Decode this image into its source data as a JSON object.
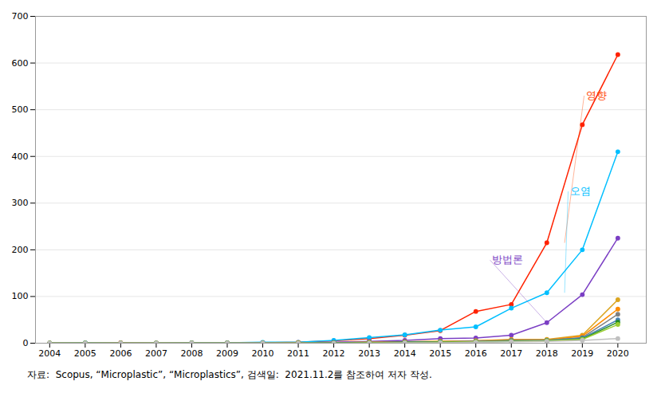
{
  "chart_data": {
    "type": "line",
    "x": [
      2004,
      2005,
      2006,
      2007,
      2008,
      2009,
      2010,
      2011,
      2012,
      2013,
      2014,
      2015,
      2016,
      2017,
      2018,
      2019,
      2020
    ],
    "series": [
      {
        "color": "#FF2200",
        "values": [
          0,
          0,
          1,
          0,
          1,
          1,
          1,
          2,
          5,
          10,
          17,
          27,
          68,
          83,
          215,
          468,
          618
        ]
      },
      {
        "color": "#00BFFF",
        "values": [
          0,
          1,
          0,
          0,
          1,
          1,
          2,
          2,
          6,
          12,
          18,
          28,
          35,
          75,
          108,
          200,
          410
        ]
      },
      {
        "color": "#7B3FC4",
        "values": [
          0,
          0,
          0,
          0,
          0,
          0,
          1,
          1,
          2,
          4,
          6,
          10,
          11,
          17,
          44,
          104,
          225
        ]
      },
      {
        "color": "#DAA520",
        "values": [
          0,
          0,
          0,
          0,
          0,
          0,
          0,
          1,
          1,
          2,
          3,
          4,
          5,
          8,
          8,
          17,
          93
        ]
      },
      {
        "color": "#FF8C00",
        "values": [
          0,
          0,
          0,
          0,
          0,
          0,
          0,
          1,
          1,
          2,
          3,
          4,
          5,
          7,
          7,
          15,
          73
        ]
      },
      {
        "color": "#808080",
        "values": [
          0,
          0,
          0,
          0,
          0,
          0,
          0,
          0,
          1,
          2,
          2,
          3,
          4,
          6,
          6,
          12,
          62
        ]
      },
      {
        "color": "#4682B4",
        "values": [
          0,
          0,
          0,
          0,
          0,
          0,
          0,
          0,
          1,
          1,
          2,
          3,
          4,
          5,
          6,
          11,
          50
        ]
      },
      {
        "color": "#228B22",
        "values": [
          0,
          0,
          0,
          0,
          0,
          0,
          0,
          0,
          1,
          1,
          2,
          2,
          3,
          4,
          5,
          9,
          45
        ]
      },
      {
        "color": "#9ACD32",
        "values": [
          0,
          0,
          0,
          0,
          0,
          0,
          0,
          0,
          0,
          1,
          1,
          2,
          3,
          4,
          5,
          8,
          40
        ]
      },
      {
        "color": "#C0C0C0",
        "values": [
          0,
          0,
          0,
          0,
          0,
          0,
          0,
          0,
          0,
          0,
          1,
          1,
          2,
          3,
          4,
          6,
          10
        ]
      }
    ],
    "annotations": [
      {
        "text": "영향",
        "x": 2019.05,
        "y": 530,
        "arrow_x": 2018.5,
        "arrow_y": 215,
        "color": "#FF4500"
      },
      {
        "text": "오염",
        "x": 2018.6,
        "y": 325,
        "arrow_x": 2018.5,
        "arrow_y": 108,
        "color": "#00BFFF"
      },
      {
        "text": "방법론",
        "x": 2016.4,
        "y": 178,
        "arrow_x": 2018.0,
        "arrow_y": 44,
        "color": "#7B3FC4"
      }
    ],
    "xlim": [
      2003.6,
      2020.8
    ],
    "xticks": [
      2004,
      2005,
      2006,
      2007,
      2008,
      2009,
      2010,
      2011,
      2012,
      2013,
      2014,
      2015,
      2016,
      2017,
      2018,
      2019,
      2020
    ],
    "ylim": [
      0,
      700
    ],
    "yticks": [
      0,
      100,
      200,
      300,
      400,
      500,
      600,
      700
    ],
    "grid": "y",
    "marker": "circle",
    "caption": "자료:  Scopus, “Microplastic”, “Microplastics”, 검색일:  2021.11.2를 참조하여 저자 작성."
  }
}
